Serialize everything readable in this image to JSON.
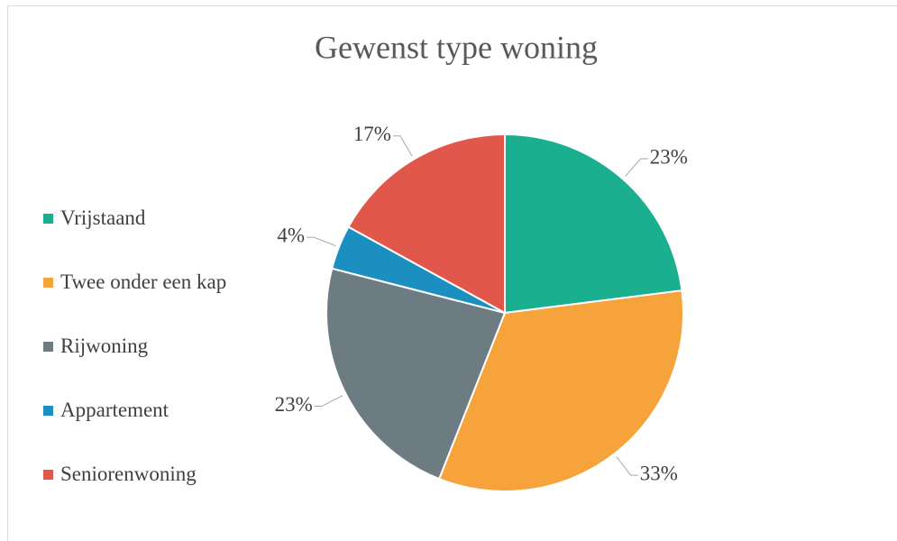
{
  "chart_data": {
    "type": "pie",
    "title": "Gewenst type woning",
    "categories": [
      "Vrijstaand",
      "Twee onder een kap",
      "Rijwoning",
      "Appartement",
      "Seniorenwoning"
    ],
    "values": [
      23,
      33,
      23,
      4,
      17
    ],
    "value_labels": [
      "23%",
      "33%",
      "23%",
      "4%",
      "17%"
    ],
    "colors": [
      "#1aaf8f",
      "#f7a33b",
      "#6d7c83",
      "#1a8fc0",
      "#e2574c"
    ],
    "legend": "left"
  }
}
